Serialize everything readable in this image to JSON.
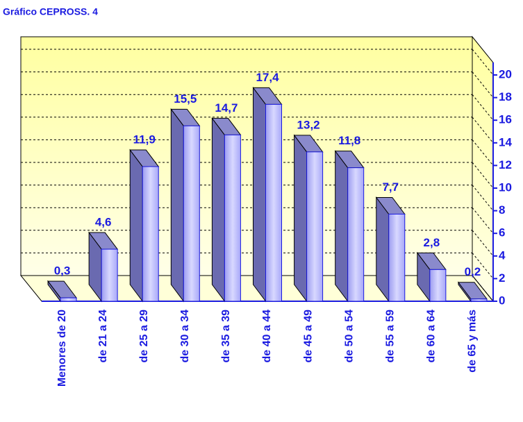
{
  "chart_data": {
    "type": "bar",
    "title": "Gráfico CEPROSS. 4",
    "categories": [
      "Menores de 20",
      "de 21 a 24",
      "de 25 a 29",
      "de 30 a 34",
      "de 35 a 39",
      "de 40 a 44",
      "de 45 a 49",
      "de 50 a 54",
      "de 55 a 59",
      "de 60 a 64",
      "de 65 y más"
    ],
    "values": [
      0.3,
      4.6,
      11.9,
      15.5,
      14.7,
      17.4,
      13.2,
      11.8,
      7.7,
      2.8,
      0.2
    ],
    "value_labels": [
      "0,3",
      "4,6",
      "11,9",
      "15,5",
      "14,7",
      "17,4",
      "13,2",
      "11,8",
      "7,7",
      "2,8",
      "0,2"
    ],
    "color": "#b8b8ff",
    "ylim": [
      0,
      20
    ],
    "yticks": [
      0,
      2,
      4,
      6,
      8,
      10,
      12,
      14,
      16,
      18,
      20
    ],
    "grid": true
  }
}
